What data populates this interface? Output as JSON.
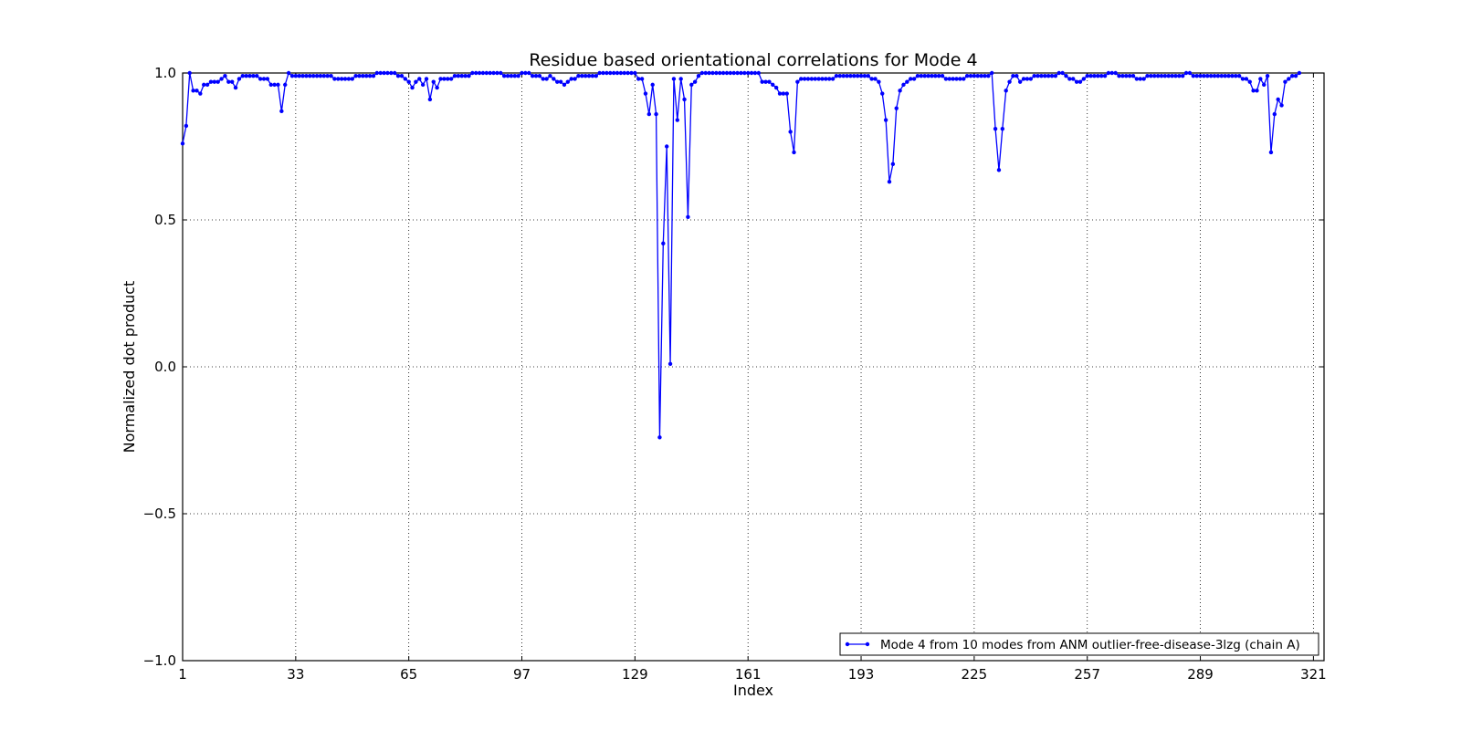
{
  "chart_data": {
    "type": "line",
    "title": "Residue based orientational correlations for Mode 4",
    "xlabel": "Index",
    "ylabel": "Normalized dot product",
    "xlim": [
      1,
      324
    ],
    "ylim": [
      -1.0,
      1.0
    ],
    "x_ticks": [
      1,
      33,
      65,
      97,
      129,
      161,
      193,
      225,
      257,
      289,
      321
    ],
    "y_ticks": [
      -1.0,
      -0.5,
      0.0,
      0.5,
      1.0
    ],
    "y_tick_labels": [
      "−1.0",
      "−0.5",
      "0.0",
      "0.5",
      "1.0"
    ],
    "grid": true,
    "legend_position": "lower-right",
    "series": [
      {
        "name": "Mode 4 from 10 modes from ANM outlier-free-disease-3lzg (chain A)",
        "color": "#0000ff",
        "marker": "dot",
        "x_start": 1,
        "values": [
          0.76,
          0.82,
          1.0,
          0.94,
          0.94,
          0.93,
          0.96,
          0.96,
          0.97,
          0.97,
          0.97,
          0.98,
          0.99,
          0.97,
          0.97,
          0.95,
          0.98,
          0.99,
          0.99,
          0.99,
          0.99,
          0.99,
          0.98,
          0.98,
          0.98,
          0.96,
          0.96,
          0.96,
          0.87,
          0.96,
          1.0,
          0.99,
          0.99,
          0.99,
          0.99,
          0.99,
          0.99,
          0.99,
          0.99,
          0.99,
          0.99,
          0.99,
          0.99,
          0.98,
          0.98,
          0.98,
          0.98,
          0.98,
          0.98,
          0.99,
          0.99,
          0.99,
          0.99,
          0.99,
          0.99,
          1.0,
          1.0,
          1.0,
          1.0,
          1.0,
          1.0,
          0.99,
          0.99,
          0.98,
          0.97,
          0.95,
          0.97,
          0.98,
          0.96,
          0.98,
          0.91,
          0.97,
          0.95,
          0.98,
          0.98,
          0.98,
          0.98,
          0.99,
          0.99,
          0.99,
          0.99,
          0.99,
          1.0,
          1.0,
          1.0,
          1.0,
          1.0,
          1.0,
          1.0,
          1.0,
          1.0,
          0.99,
          0.99,
          0.99,
          0.99,
          0.99,
          1.0,
          1.0,
          1.0,
          0.99,
          0.99,
          0.99,
          0.98,
          0.98,
          0.99,
          0.98,
          0.97,
          0.97,
          0.96,
          0.97,
          0.98,
          0.98,
          0.99,
          0.99,
          0.99,
          0.99,
          0.99,
          0.99,
          1.0,
          1.0,
          1.0,
          1.0,
          1.0,
          1.0,
          1.0,
          1.0,
          1.0,
          1.0,
          1.0,
          0.98,
          0.98,
          0.93,
          0.86,
          0.96,
          0.86,
          -0.24,
          0.42,
          0.75,
          0.01,
          0.98,
          0.84,
          0.98,
          0.91,
          0.51,
          0.96,
          0.97,
          0.99,
          1.0,
          1.0,
          1.0,
          1.0,
          1.0,
          1.0,
          1.0,
          1.0,
          1.0,
          1.0,
          1.0,
          1.0,
          1.0,
          1.0,
          1.0,
          1.0,
          1.0,
          0.97,
          0.97,
          0.97,
          0.96,
          0.95,
          0.93,
          0.93,
          0.93,
          0.8,
          0.73,
          0.97,
          0.98,
          0.98,
          0.98,
          0.98,
          0.98,
          0.98,
          0.98,
          0.98,
          0.98,
          0.98,
          0.99,
          0.99,
          0.99,
          0.99,
          0.99,
          0.99,
          0.99,
          0.99,
          0.99,
          0.99,
          0.98,
          0.98,
          0.97,
          0.93,
          0.84,
          0.63,
          0.69,
          0.88,
          0.94,
          0.96,
          0.97,
          0.98,
          0.98,
          0.99,
          0.99,
          0.99,
          0.99,
          0.99,
          0.99,
          0.99,
          0.99,
          0.98,
          0.98,
          0.98,
          0.98,
          0.98,
          0.98,
          0.99,
          0.99,
          0.99,
          0.99,
          0.99,
          0.99,
          0.99,
          1.0,
          0.81,
          0.67,
          0.81,
          0.94,
          0.97,
          0.99,
          0.99,
          0.97,
          0.98,
          0.98,
          0.98,
          0.99,
          0.99,
          0.99,
          0.99,
          0.99,
          0.99,
          0.99,
          1.0,
          1.0,
          0.99,
          0.98,
          0.98,
          0.97,
          0.97,
          0.98,
          0.99,
          0.99,
          0.99,
          0.99,
          0.99,
          0.99,
          1.0,
          1.0,
          1.0,
          0.99,
          0.99,
          0.99,
          0.99,
          0.99,
          0.98,
          0.98,
          0.98,
          0.99,
          0.99,
          0.99,
          0.99,
          0.99,
          0.99,
          0.99,
          0.99,
          0.99,
          0.99,
          0.99,
          1.0,
          1.0,
          0.99,
          0.99,
          0.99,
          0.99,
          0.99,
          0.99,
          0.99,
          0.99,
          0.99,
          0.99,
          0.99,
          0.99,
          0.99,
          0.99,
          0.98,
          0.98,
          0.97,
          0.94,
          0.94,
          0.98,
          0.96,
          0.99,
          0.73,
          0.86,
          0.91,
          0.89,
          0.97,
          0.98,
          0.99,
          0.99,
          1.0
        ]
      }
    ]
  }
}
